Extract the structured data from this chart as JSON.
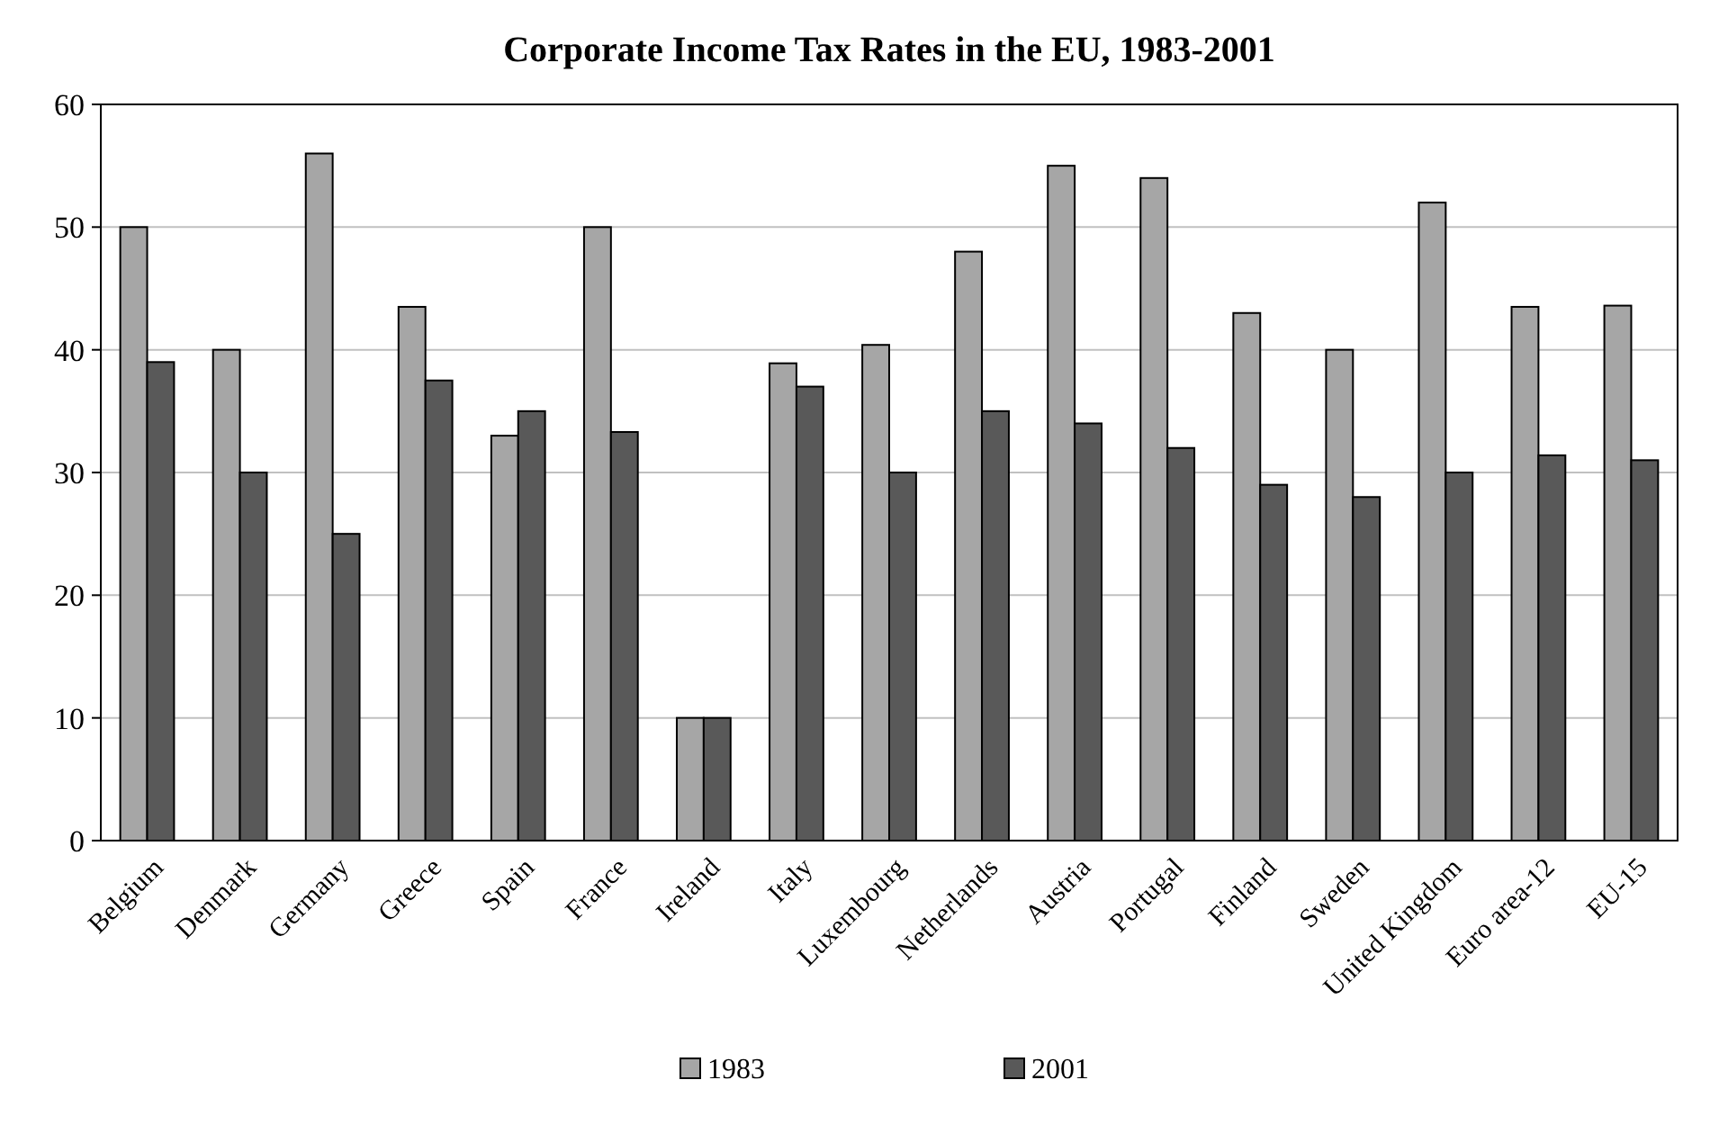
{
  "chart_data": {
    "type": "bar",
    "title": "Corporate Income Tax Rates in the EU, 1983-2001",
    "categories": [
      "Belgium",
      "Denmark",
      "Germany",
      "Greece",
      "Spain",
      "France",
      "Ireland",
      "Italy",
      "Luxembourg",
      "Netherlands",
      "Austria",
      "Portugal",
      "Finland",
      "Sweden",
      "United Kingdom",
      "Euro area-12",
      "EU-15"
    ],
    "series": [
      {
        "name": "1983",
        "color": "#a6a6a6",
        "values": [
          50,
          40,
          56,
          43.5,
          33,
          50,
          10,
          38.9,
          40.4,
          48,
          55,
          54,
          43,
          40,
          52,
          43.5,
          43.6
        ]
      },
      {
        "name": "2001",
        "color": "#595959",
        "values": [
          39,
          30,
          25,
          37.5,
          35,
          33.3,
          10,
          37,
          30,
          35,
          34,
          32,
          29,
          28,
          30,
          31.4,
          31
        ]
      }
    ],
    "ylim": [
      0,
      60
    ],
    "yticks": [
      0,
      10,
      20,
      30,
      40,
      50,
      60
    ],
    "grid": "y",
    "legend": "bottom"
  }
}
